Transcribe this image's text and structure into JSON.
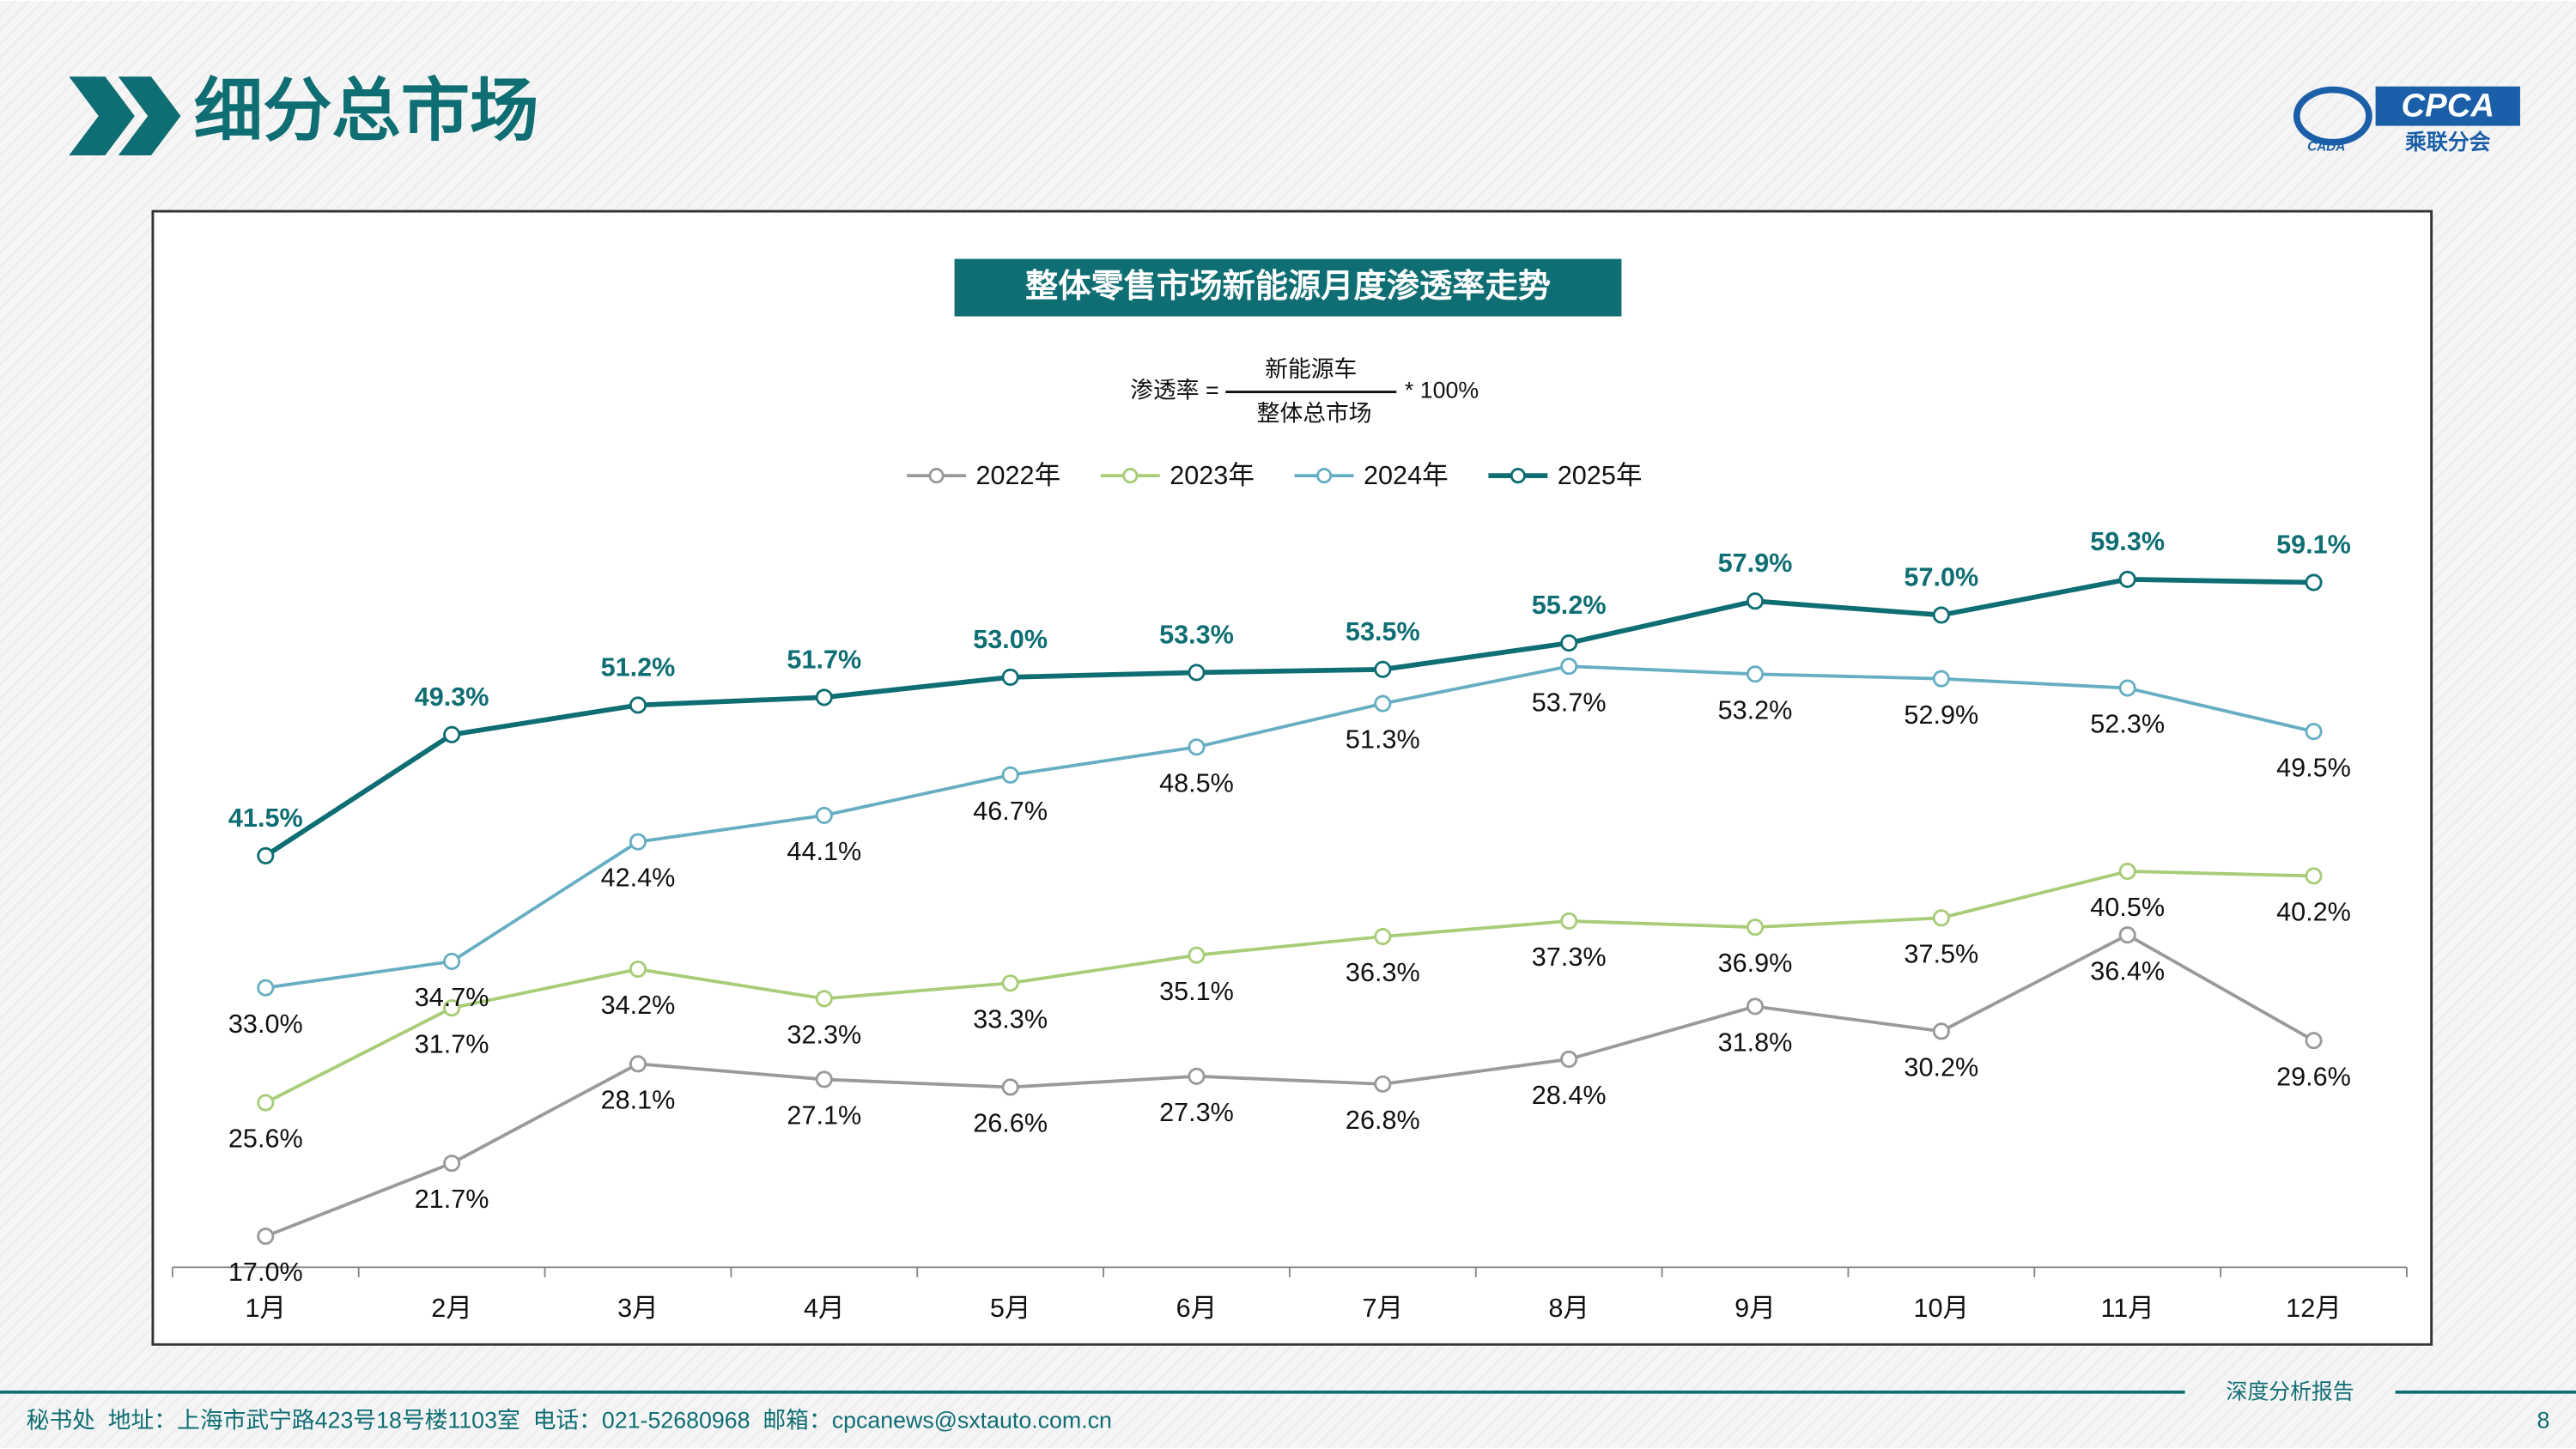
{
  "header": {
    "title": "细分总市场",
    "logo_text": "CPCA",
    "logo_sub": "乘联分会",
    "logo_mark": "CADA"
  },
  "chart_data": {
    "type": "line",
    "title": "整体零售市场新能源月度渗透率走势",
    "formula": {
      "left": "渗透率 =",
      "numerator": "新能源车",
      "denominator": "整体总市场",
      "right": "* 100%"
    },
    "categories": [
      "1月",
      "2月",
      "3月",
      "4月",
      "5月",
      "6月",
      "7月",
      "8月",
      "9月",
      "10月",
      "11月",
      "12月"
    ],
    "ylim": [
      15,
      60
    ],
    "legend": "top",
    "series": [
      {
        "name": "2022年",
        "color": "#9a9a9a",
        "values": [
          17.0,
          21.7,
          28.1,
          27.1,
          26.6,
          27.3,
          26.8,
          28.4,
          31.8,
          30.2,
          36.4,
          29.6
        ],
        "value_labels": [
          "17.0%",
          "21.7%",
          "28.1%",
          "27.1%",
          "26.6%",
          "27.3%",
          "26.8%",
          "28.4%",
          "31.8%",
          "30.2%",
          "36.4%",
          "29.6%"
        ]
      },
      {
        "name": "2023年",
        "color": "#a8cc78",
        "values": [
          25.6,
          31.7,
          34.2,
          32.3,
          33.3,
          35.1,
          36.3,
          37.3,
          36.9,
          37.5,
          40.5,
          40.2
        ],
        "value_labels": [
          "25.6%",
          "31.7%",
          "34.2%",
          "32.3%",
          "33.3%",
          "35.1%",
          "36.3%",
          "37.3%",
          "36.9%",
          "37.5%",
          "40.5%",
          "40.2%"
        ]
      },
      {
        "name": "2024年",
        "color": "#67aec3",
        "values": [
          33.0,
          34.7,
          42.4,
          44.1,
          46.7,
          48.5,
          51.3,
          53.7,
          53.2,
          52.9,
          52.3,
          49.5
        ],
        "value_labels": [
          "33.0%",
          "34.7%",
          "42.4%",
          "44.1%",
          "46.7%",
          "48.5%",
          "51.3%",
          "53.7%",
          "53.2%",
          "52.9%",
          "52.3%",
          "49.5%"
        ]
      },
      {
        "name": "2025年",
        "color": "#0f6e73",
        "values": [
          41.5,
          49.3,
          51.2,
          51.7,
          53.0,
          53.3,
          53.5,
          55.2,
          57.9,
          57.0,
          59.3,
          59.1
        ],
        "value_labels": [
          "41.5%",
          "49.3%",
          "51.2%",
          "51.7%",
          "53.0%",
          "53.3%",
          "53.5%",
          "55.2%",
          "57.9%",
          "57.0%",
          "59.3%",
          "59.1%"
        ]
      }
    ]
  },
  "footer": {
    "contact": "秘书处  地址：上海市武宁路423号18号楼1103室  电话：021-52680968  邮箱：cpcanews@sxtauto.com.cn",
    "report": "深度分析报告",
    "page": "8"
  }
}
